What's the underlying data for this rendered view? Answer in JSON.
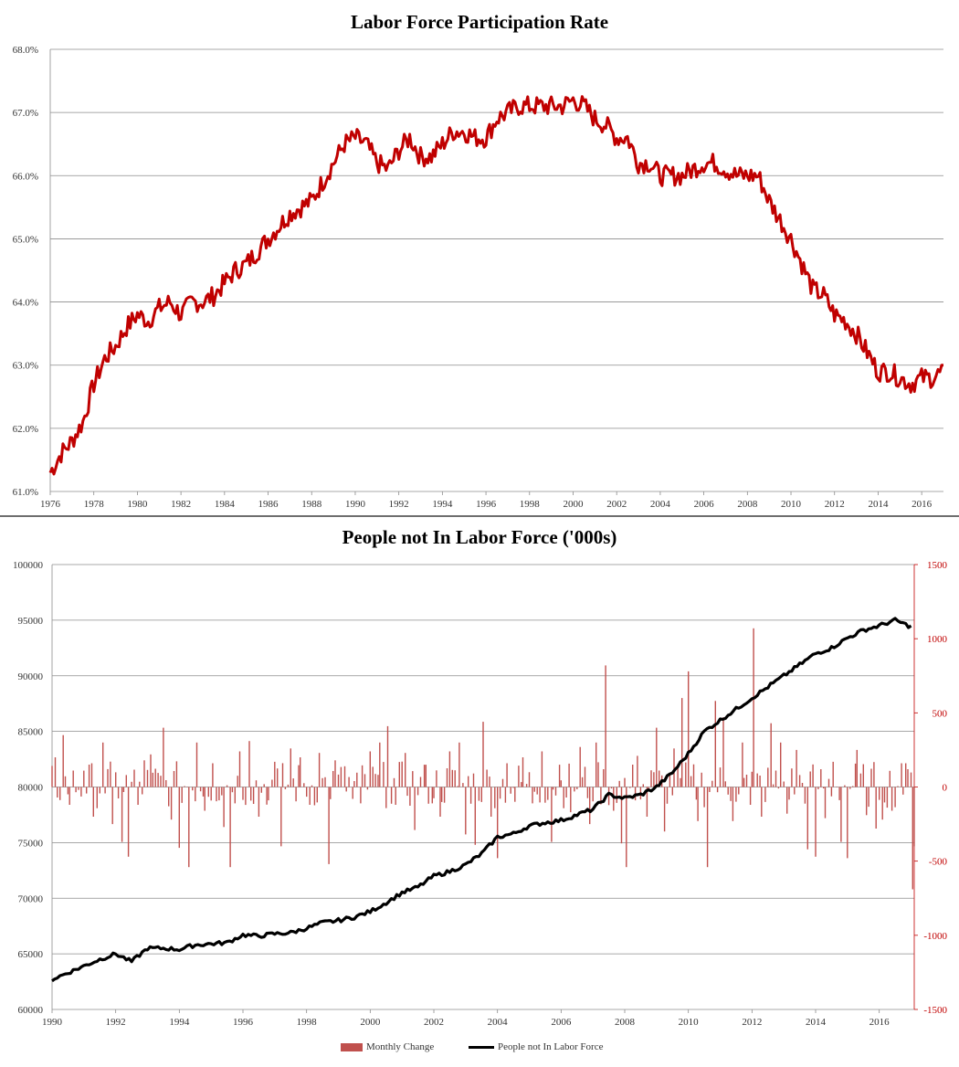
{
  "chart_data": [
    {
      "type": "line",
      "title": "Labor Force Participation Rate",
      "xlabel": "",
      "ylabel": "",
      "xlim": [
        1976,
        2017
      ],
      "ylim": [
        61.0,
        68.0
      ],
      "y_ticks": [
        "61.0%",
        "62.0%",
        "63.0%",
        "64.0%",
        "65.0%",
        "66.0%",
        "67.0%",
        "68.0%"
      ],
      "x_ticks": [
        "1976",
        "1978",
        "1980",
        "1982",
        "1984",
        "1986",
        "1988",
        "1990",
        "1992",
        "1994",
        "1996",
        "1998",
        "2000",
        "2002",
        "2004",
        "2006",
        "2008",
        "2010",
        "2012",
        "2014",
        "2016"
      ],
      "grid": true,
      "color": "#c00000",
      "series": [
        {
          "points": [
            [
              1976.0,
              61.3
            ],
            [
              1976.5,
              61.6
            ],
            [
              1977.0,
              61.8
            ],
            [
              1977.5,
              62.1
            ],
            [
              1978.0,
              62.7
            ],
            [
              1978.5,
              63.1
            ],
            [
              1979.0,
              63.3
            ],
            [
              1979.5,
              63.6
            ],
            [
              1980.0,
              63.8
            ],
            [
              1980.5,
              63.7
            ],
            [
              1981.0,
              63.9
            ],
            [
              1981.5,
              64.0
            ],
            [
              1982.0,
              63.8
            ],
            [
              1982.5,
              64.0
            ],
            [
              1983.0,
              64.0
            ],
            [
              1983.5,
              64.1
            ],
            [
              1984.0,
              64.3
            ],
            [
              1984.5,
              64.5
            ],
            [
              1985.0,
              64.6
            ],
            [
              1985.5,
              64.8
            ],
            [
              1986.0,
              65.0
            ],
            [
              1986.5,
              65.2
            ],
            [
              1987.0,
              65.4
            ],
            [
              1987.5,
              65.5
            ],
            [
              1988.0,
              65.6
            ],
            [
              1988.5,
              65.9
            ],
            [
              1989.0,
              66.2
            ],
            [
              1989.5,
              66.5
            ],
            [
              1990.0,
              66.6
            ],
            [
              1990.5,
              66.5
            ],
            [
              1991.0,
              66.2
            ],
            [
              1991.5,
              66.1
            ],
            [
              1992.0,
              66.4
            ],
            [
              1992.5,
              66.6
            ],
            [
              1993.0,
              66.3
            ],
            [
              1993.5,
              66.3
            ],
            [
              1994.0,
              66.5
            ],
            [
              1994.5,
              66.7
            ],
            [
              1995.0,
              66.7
            ],
            [
              1995.5,
              66.6
            ],
            [
              1996.0,
              66.6
            ],
            [
              1996.5,
              66.9
            ],
            [
              1997.0,
              67.0
            ],
            [
              1997.5,
              67.1
            ],
            [
              1998.0,
              67.1
            ],
            [
              1998.5,
              67.1
            ],
            [
              1999.0,
              67.1
            ],
            [
              1999.5,
              67.1
            ],
            [
              2000.0,
              67.2
            ],
            [
              2000.5,
              67.1
            ],
            [
              2001.0,
              66.9
            ],
            [
              2001.5,
              66.8
            ],
            [
              2002.0,
              66.6
            ],
            [
              2002.5,
              66.6
            ],
            [
              2003.0,
              66.2
            ],
            [
              2003.5,
              66.2
            ],
            [
              2004.0,
              66.0
            ],
            [
              2004.5,
              66.0
            ],
            [
              2005.0,
              66.0
            ],
            [
              2005.5,
              66.1
            ],
            [
              2006.0,
              66.2
            ],
            [
              2006.5,
              66.2
            ],
            [
              2007.0,
              66.1
            ],
            [
              2007.5,
              66.0
            ],
            [
              2008.0,
              66.0
            ],
            [
              2008.5,
              66.0
            ],
            [
              2009.0,
              65.6
            ],
            [
              2009.5,
              65.3
            ],
            [
              2010.0,
              65.0
            ],
            [
              2010.5,
              64.6
            ],
            [
              2011.0,
              64.2
            ],
            [
              2011.5,
              64.1
            ],
            [
              2012.0,
              63.8
            ],
            [
              2012.5,
              63.7
            ],
            [
              2013.0,
              63.5
            ],
            [
              2013.5,
              63.2
            ],
            [
              2014.0,
              62.9
            ],
            [
              2014.5,
              62.9
            ],
            [
              2015.0,
              62.8
            ],
            [
              2015.5,
              62.7
            ],
            [
              2016.0,
              62.8
            ],
            [
              2016.5,
              62.8
            ],
            [
              2017.0,
              62.9
            ]
          ]
        }
      ]
    },
    {
      "type": "bar+line",
      "title": "People not In Labor Force ('000s)",
      "xlim": [
        1990,
        2017.1
      ],
      "y_left_lim": [
        60000,
        100000
      ],
      "y_right_lim": [
        -1500,
        1500
      ],
      "y_left_ticks": [
        "60000",
        "65000",
        "70000",
        "75000",
        "80000",
        "85000",
        "90000",
        "95000",
        "100000"
      ],
      "y_right_ticks": [
        "-1500",
        "-1000",
        "-500",
        "0",
        "500",
        "1000",
        "1500"
      ],
      "x_ticks": [
        "1990",
        "1992",
        "1994",
        "1996",
        "1998",
        "2000",
        "2002",
        "2004",
        "2006",
        "2008",
        "2010",
        "2012",
        "2014",
        "2016"
      ],
      "grid": true,
      "legend_position": "bottom",
      "series": [
        {
          "name": "Monthly Change",
          "axis": "right",
          "kind": "bar",
          "color": "#c0504d",
          "points": [
            [
              1990.1,
              200
            ],
            [
              1990.35,
              350
            ],
            [
              1990.55,
              -120
            ],
            [
              1991.0,
              110
            ],
            [
              1991.3,
              -200
            ],
            [
              1991.6,
              300
            ],
            [
              1991.9,
              -250
            ],
            [
              1992.2,
              -370
            ],
            [
              1992.4,
              -470
            ],
            [
              1992.7,
              -120
            ],
            [
              1992.9,
              180
            ],
            [
              1993.1,
              220
            ],
            [
              1993.5,
              400
            ],
            [
              1993.75,
              -220
            ],
            [
              1994.0,
              -410
            ],
            [
              1994.3,
              -540
            ],
            [
              1994.55,
              300
            ],
            [
              1994.8,
              -160
            ],
            [
              1995.05,
              160
            ],
            [
              1995.4,
              -270
            ],
            [
              1995.6,
              -540
            ],
            [
              1995.9,
              240
            ],
            [
              1996.2,
              310
            ],
            [
              1996.5,
              -200
            ],
            [
              1996.8,
              -90
            ],
            [
              1997.0,
              170
            ],
            [
              1997.2,
              -400
            ],
            [
              1997.5,
              260
            ],
            [
              1997.8,
              200
            ],
            [
              1998.1,
              -120
            ],
            [
              1998.4,
              230
            ],
            [
              1998.7,
              -520
            ],
            [
              1998.9,
              180
            ],
            [
              1999.2,
              140
            ],
            [
              1999.45,
              -80
            ],
            [
              1999.7,
              -110
            ],
            [
              2000.0,
              240
            ],
            [
              2000.3,
              300
            ],
            [
              2000.55,
              410
            ],
            [
              2000.8,
              -120
            ],
            [
              2001.1,
              230
            ],
            [
              2001.4,
              -290
            ],
            [
              2001.7,
              150
            ],
            [
              2001.95,
              -110
            ],
            [
              2002.2,
              -200
            ],
            [
              2002.5,
              240
            ],
            [
              2002.8,
              300
            ],
            [
              2003.0,
              -320
            ],
            [
              2003.3,
              -390
            ],
            [
              2003.55,
              440
            ],
            [
              2003.8,
              -200
            ],
            [
              2004.0,
              -480
            ],
            [
              2004.3,
              160
            ],
            [
              2004.55,
              -100
            ],
            [
              2004.8,
              200
            ],
            [
              2005.1,
              -110
            ],
            [
              2005.4,
              240
            ],
            [
              2005.7,
              -370
            ],
            [
              2005.95,
              150
            ],
            [
              2006.3,
              -170
            ],
            [
              2006.6,
              270
            ],
            [
              2006.9,
              -250
            ],
            [
              2007.1,
              300
            ],
            [
              2007.4,
              820
            ],
            [
              2007.65,
              -160
            ],
            [
              2007.9,
              -380
            ],
            [
              2008.05,
              -540
            ],
            [
              2008.4,
              210
            ],
            [
              2008.7,
              -200
            ],
            [
              2009.0,
              400
            ],
            [
              2009.25,
              -300
            ],
            [
              2009.55,
              260
            ],
            [
              2009.8,
              600
            ],
            [
              2010.0,
              780
            ],
            [
              2010.3,
              -230
            ],
            [
              2010.6,
              -540
            ],
            [
              2010.85,
              580
            ],
            [
              2011.1,
              470
            ],
            [
              2011.4,
              -230
            ],
            [
              2011.7,
              300
            ],
            [
              2011.95,
              -120
            ],
            [
              2012.05,
              1070
            ],
            [
              2012.3,
              -200
            ],
            [
              2012.6,
              430
            ],
            [
              2012.9,
              300
            ],
            [
              2013.1,
              -180
            ],
            [
              2013.4,
              250
            ],
            [
              2013.75,
              -420
            ],
            [
              2014.0,
              -470
            ],
            [
              2014.3,
              -210
            ],
            [
              2014.55,
              170
            ],
            [
              2014.8,
              -370
            ],
            [
              2015.0,
              -480
            ],
            [
              2015.3,
              250
            ],
            [
              2015.6,
              -190
            ],
            [
              2015.9,
              -280
            ],
            [
              2016.1,
              -220
            ],
            [
              2016.4,
              -160
            ],
            [
              2016.7,
              160
            ],
            [
              2016.9,
              120
            ],
            [
              2017.05,
              -690
            ],
            [
              2017.1,
              -400
            ]
          ]
        },
        {
          "name": "People not In Labor Force",
          "axis": "left",
          "kind": "line",
          "color": "#000000",
          "points": [
            [
              1990.0,
              62700
            ],
            [
              1990.5,
              63300
            ],
            [
              1991.0,
              63900
            ],
            [
              1991.5,
              64500
            ],
            [
              1992.0,
              65000
            ],
            [
              1992.5,
              64300
            ],
            [
              1993.0,
              65500
            ],
            [
              1993.5,
              65500
            ],
            [
              1994.0,
              65400
            ],
            [
              1994.5,
              65800
            ],
            [
              1995.0,
              65900
            ],
            [
              1995.5,
              66000
            ],
            [
              1996.0,
              66700
            ],
            [
              1996.5,
              66600
            ],
            [
              1997.0,
              66800
            ],
            [
              1997.5,
              66900
            ],
            [
              1998.0,
              67300
            ],
            [
              1998.5,
              67800
            ],
            [
              1999.0,
              68000
            ],
            [
              1999.5,
              68300
            ],
            [
              2000.0,
              68800
            ],
            [
              2000.5,
              69600
            ],
            [
              2001.0,
              70500
            ],
            [
              2001.5,
              71000
            ],
            [
              2002.0,
              72000
            ],
            [
              2002.5,
              72400
            ],
            [
              2003.0,
              73000
            ],
            [
              2003.5,
              74000
            ],
            [
              2004.0,
              75500
            ],
            [
              2004.5,
              75800
            ],
            [
              2005.0,
              76500
            ],
            [
              2005.5,
              76800
            ],
            [
              2006.0,
              77000
            ],
            [
              2006.5,
              77500
            ],
            [
              2007.0,
              78000
            ],
            [
              2007.5,
              79300
            ],
            [
              2008.0,
              79000
            ],
            [
              2008.5,
              79300
            ],
            [
              2009.0,
              80000
            ],
            [
              2009.5,
              81300
            ],
            [
              2010.0,
              83000
            ],
            [
              2010.5,
              85000
            ],
            [
              2011.0,
              86000
            ],
            [
              2011.5,
              87000
            ],
            [
              2012.0,
              88000
            ],
            [
              2012.5,
              89000
            ],
            [
              2013.0,
              90000
            ],
            [
              2013.5,
              91000
            ],
            [
              2014.0,
              92000
            ],
            [
              2014.5,
              92500
            ],
            [
              2015.0,
              93400
            ],
            [
              2015.5,
              94100
            ],
            [
              2016.0,
              94500
            ],
            [
              2016.5,
              95000
            ],
            [
              2017.0,
              94400
            ]
          ]
        }
      ]
    }
  ]
}
